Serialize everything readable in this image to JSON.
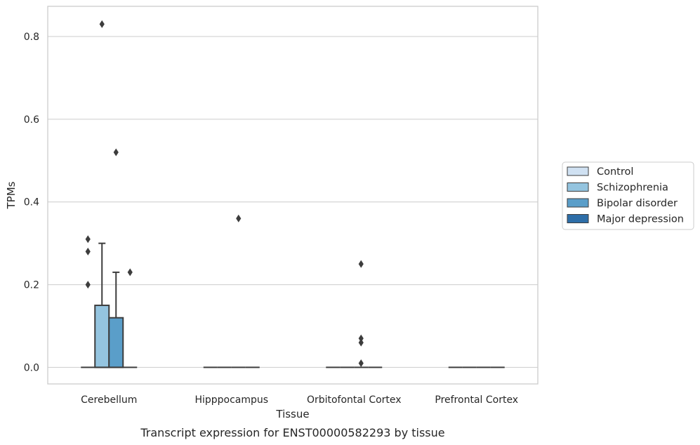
{
  "chart_data": {
    "type": "box",
    "title": "",
    "caption": "Transcript expression for ENST00000582293 by tissue",
    "xlabel": "Tissue",
    "ylabel": "TPMs",
    "ylim": [
      -0.04,
      0.873
    ],
    "yticks": [
      0.0,
      0.2,
      0.4,
      0.6,
      0.8
    ],
    "ytick_labels": [
      "0.0",
      "0.2",
      "0.4",
      "0.6",
      "0.8"
    ],
    "grid": true,
    "legend_position": "right",
    "categories": [
      "Cerebellum",
      "Hipppocampus",
      "Orbitofontal Cortex",
      "Prefrontal Cortex"
    ],
    "series": [
      {
        "name": "Control",
        "color": "#d0e1f2",
        "boxes": [
          {
            "q1": 0,
            "median": 0,
            "q3": 0,
            "whisker_low": 0,
            "whisker_high": 0,
            "outliers": [
              0.2,
              0.28,
              0.31
            ]
          },
          {
            "q1": 0,
            "median": 0,
            "q3": 0,
            "whisker_low": 0,
            "whisker_high": 0,
            "outliers": []
          },
          {
            "q1": 0,
            "median": 0,
            "q3": 0,
            "whisker_low": 0,
            "whisker_high": 0,
            "outliers": []
          },
          {
            "q1": 0,
            "median": 0,
            "q3": 0,
            "whisker_low": 0,
            "whisker_high": 0,
            "outliers": []
          }
        ]
      },
      {
        "name": "Schizophrenia",
        "color": "#94c4df",
        "boxes": [
          {
            "q1": 0,
            "median": 0,
            "q3": 0.15,
            "whisker_low": 0,
            "whisker_high": 0.3,
            "outliers": [
              0.83
            ]
          },
          {
            "q1": 0,
            "median": 0,
            "q3": 0,
            "whisker_low": 0,
            "whisker_high": 0,
            "outliers": []
          },
          {
            "q1": 0,
            "median": 0,
            "q3": 0,
            "whisker_low": 0,
            "whisker_high": 0,
            "outliers": []
          },
          {
            "q1": 0,
            "median": 0,
            "q3": 0,
            "whisker_low": 0,
            "whisker_high": 0,
            "outliers": []
          }
        ]
      },
      {
        "name": "Bipolar disorder",
        "color": "#5a9ec9",
        "boxes": [
          {
            "q1": 0,
            "median": 0,
            "q3": 0.12,
            "whisker_low": 0,
            "whisker_high": 0.23,
            "outliers": [
              0.52
            ]
          },
          {
            "q1": 0,
            "median": 0,
            "q3": 0,
            "whisker_low": 0,
            "whisker_high": 0,
            "outliers": [
              0.36
            ]
          },
          {
            "q1": 0,
            "median": 0,
            "q3": 0,
            "whisker_low": 0,
            "whisker_high": 0,
            "outliers": [
              0.01,
              0.06,
              0.07,
              0.25
            ]
          },
          {
            "q1": 0,
            "median": 0,
            "q3": 0,
            "whisker_low": 0,
            "whisker_high": 0,
            "outliers": []
          }
        ]
      },
      {
        "name": "Major depression",
        "color": "#2e6ea8",
        "boxes": [
          {
            "q1": 0,
            "median": 0,
            "q3": 0,
            "whisker_low": 0,
            "whisker_high": 0,
            "outliers": [
              0.23
            ]
          },
          {
            "q1": 0,
            "median": 0,
            "q3": 0,
            "whisker_low": 0,
            "whisker_high": 0,
            "outliers": []
          },
          {
            "q1": 0,
            "median": 0,
            "q3": 0,
            "whisker_low": 0,
            "whisker_high": 0,
            "outliers": []
          },
          {
            "q1": 0,
            "median": 0,
            "q3": 0,
            "whisker_low": 0,
            "whisker_high": 0,
            "outliers": []
          }
        ]
      }
    ],
    "colors": {
      "grid": "#cccccc",
      "frame": "#cccccc",
      "box_edge": "#3d3d3d",
      "background": "#ffffff"
    }
  }
}
